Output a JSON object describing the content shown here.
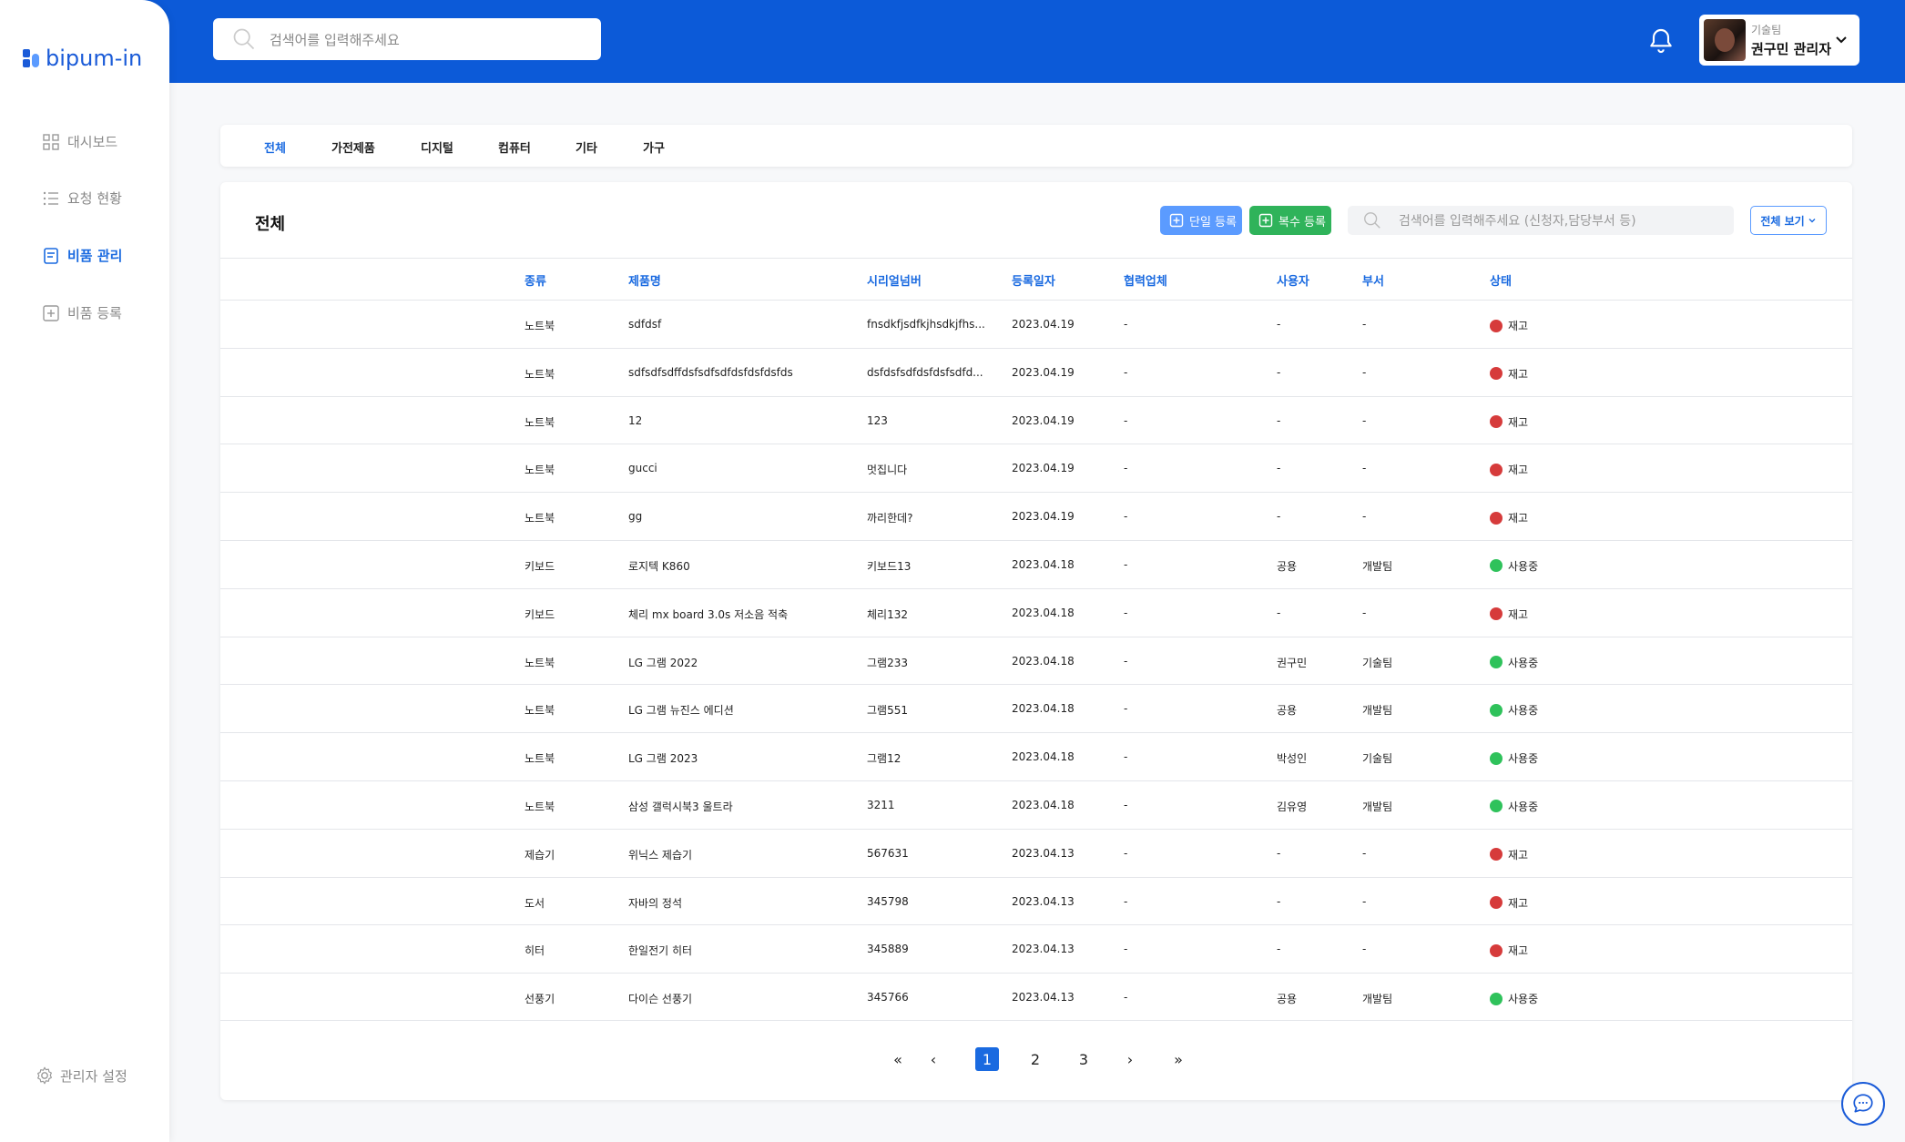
{
  "colors": {
    "brand": "#0c5ad8",
    "accent": "#1a6ae0",
    "status_red": "#d63b3b",
    "status_green": "#2fc25b"
  },
  "header": {
    "search_placeholder": "검색어를 입력해주세요",
    "search_icon": "search-icon",
    "notification_icon": "bell-icon",
    "profile": {
      "team": "기술팀",
      "name": "권구민 관리자"
    }
  },
  "sidebar": {
    "logo_text": "bipum-in",
    "items": [
      {
        "label": "대시보드",
        "icon": "grid-icon"
      },
      {
        "label": "요청 현황",
        "icon": "list-icon"
      },
      {
        "label": "비품 관리",
        "icon": "document-icon"
      },
      {
        "label": "비품 등록",
        "icon": "plus-square-icon"
      }
    ],
    "admin_label": "관리자 설정"
  },
  "tabs": [
    "전체",
    "가전제품",
    "디지털",
    "컴퓨터",
    "기타",
    "가구"
  ],
  "main": {
    "title": "전체",
    "single_register": "단일 등록",
    "multi_register": "복수 등록",
    "search_placeholder": "검색어를 입력해주세요 (신청자,담당부서 등)",
    "view_all": "전체 보기"
  },
  "table": {
    "headers": [
      "종류",
      "제품명",
      "시리얼넘버",
      "등록일자",
      "협력업체",
      "사용자",
      "부서",
      "상태"
    ],
    "rows": [
      {
        "type": "노트북",
        "name": "sdfdsf",
        "serial": "fnsdkfjsdfkjhsdkjfhs...",
        "date": "2023.04.19",
        "vendor": "-",
        "user": "-",
        "dept": "-",
        "status": "재고",
        "color": "#d63b3b"
      },
      {
        "type": "노트북",
        "name": "sdfsdfsdffdsfsdfsdfdsfdsfdsfds",
        "serial": "dsfdsfsdfdsfdsfsdfd...",
        "date": "2023.04.19",
        "vendor": "-",
        "user": "-",
        "dept": "-",
        "status": "재고",
        "color": "#d63b3b"
      },
      {
        "type": "노트북",
        "name": "12",
        "serial": "123",
        "date": "2023.04.19",
        "vendor": "-",
        "user": "-",
        "dept": "-",
        "status": "재고",
        "color": "#d63b3b"
      },
      {
        "type": "노트북",
        "name": "gucci",
        "serial": "멋집니다",
        "date": "2023.04.19",
        "vendor": "-",
        "user": "-",
        "dept": "-",
        "status": "재고",
        "color": "#d63b3b"
      },
      {
        "type": "노트북",
        "name": "gg",
        "serial": "까리한데?",
        "date": "2023.04.19",
        "vendor": "-",
        "user": "-",
        "dept": "-",
        "status": "재고",
        "color": "#d63b3b"
      },
      {
        "type": "키보드",
        "name": "로지텍 K860",
        "serial": "키보드13",
        "date": "2023.04.18",
        "vendor": "-",
        "user": "공용",
        "dept": "개발팀",
        "status": "사용중",
        "color": "#2fc25b"
      },
      {
        "type": "키보드",
        "name": "체리 mx board 3.0s 저소음 적축",
        "serial": "체리132",
        "date": "2023.04.18",
        "vendor": "-",
        "user": "-",
        "dept": "-",
        "status": "재고",
        "color": "#d63b3b"
      },
      {
        "type": "노트북",
        "name": "LG 그램 2022",
        "serial": "그램233",
        "date": "2023.04.18",
        "vendor": "-",
        "user": "권구민",
        "dept": "기술팀",
        "status": "사용중",
        "color": "#2fc25b"
      },
      {
        "type": "노트북",
        "name": "LG 그램 뉴진스 에디션",
        "serial": "그램551",
        "date": "2023.04.18",
        "vendor": "-",
        "user": "공용",
        "dept": "개발팀",
        "status": "사용중",
        "color": "#2fc25b"
      },
      {
        "type": "노트북",
        "name": "LG 그램 2023",
        "serial": "그램12",
        "date": "2023.04.18",
        "vendor": "-",
        "user": "박성인",
        "dept": "기술팀",
        "status": "사용중",
        "color": "#2fc25b"
      },
      {
        "type": "노트북",
        "name": "삼성 갤럭시북3 울트라",
        "serial": "3211",
        "date": "2023.04.18",
        "vendor": "-",
        "user": "김유영",
        "dept": "개발팀",
        "status": "사용중",
        "color": "#2fc25b"
      },
      {
        "type": "제습기",
        "name": "위닉스 제습기",
        "serial": "567631",
        "date": "2023.04.13",
        "vendor": "-",
        "user": "-",
        "dept": "-",
        "status": "재고",
        "color": "#d63b3b"
      },
      {
        "type": "도서",
        "name": "자바의 정석",
        "serial": "345798",
        "date": "2023.04.13",
        "vendor": "-",
        "user": "-",
        "dept": "-",
        "status": "재고",
        "color": "#d63b3b"
      },
      {
        "type": "히터",
        "name": "한일전기 히터",
        "serial": "345889",
        "date": "2023.04.13",
        "vendor": "-",
        "user": "-",
        "dept": "-",
        "status": "재고",
        "color": "#d63b3b"
      },
      {
        "type": "선풍기",
        "name": "다이슨 선풍기",
        "serial": "345766",
        "date": "2023.04.13",
        "vendor": "-",
        "user": "공용",
        "dept": "개발팀",
        "status": "사용중",
        "color": "#2fc25b"
      }
    ]
  },
  "pagination": {
    "first": "«",
    "prev": "‹",
    "pages": [
      "1",
      "2",
      "3"
    ],
    "next": "›",
    "last": "»",
    "current": "1"
  },
  "chat_icon": "chat-bubble-icon"
}
